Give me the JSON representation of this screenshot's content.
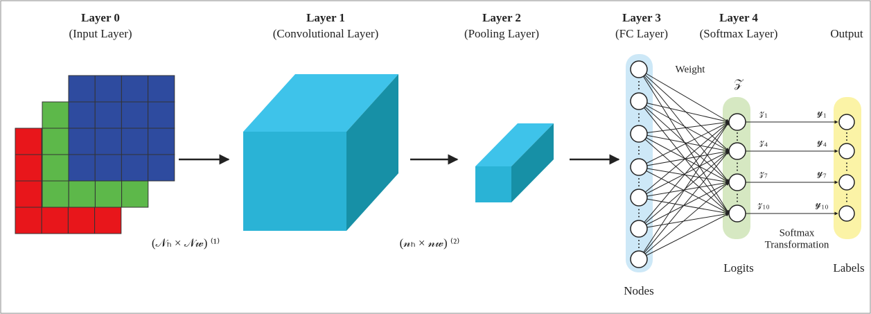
{
  "layers": [
    {
      "name": "Layer 0",
      "subtitle": "(Input Layer)"
    },
    {
      "name": "Layer 1",
      "subtitle": "(Convolutional Layer)"
    },
    {
      "name": "Layer 2",
      "subtitle": "(Pooling Layer)"
    },
    {
      "name": "Layer 3",
      "subtitle": "(FC Layer)"
    },
    {
      "name": "Layer 4",
      "subtitle": "(Softmax Layer)"
    }
  ],
  "output_title": "Output",
  "dims": [
    "(𝒩ₕ × 𝒩𝓌) ⁽¹⁾",
    "(𝓃ₕ × 𝓃𝓌) ⁽²⁾"
  ],
  "weight_label": "Weight",
  "logit_symbol": "𝒵",
  "logits": [
    "𝓏₁",
    "𝓏₄",
    "𝓏₇",
    "𝓏₁₀"
  ],
  "outputs": [
    "𝓎₁",
    "𝓎₄",
    "𝓎₇",
    "𝓎₁₀"
  ],
  "softmax_label": [
    "Softmax",
    "Transformation"
  ],
  "logits_label": "Logits",
  "labels_label": "Labels",
  "nodes_label": "Nodes"
}
